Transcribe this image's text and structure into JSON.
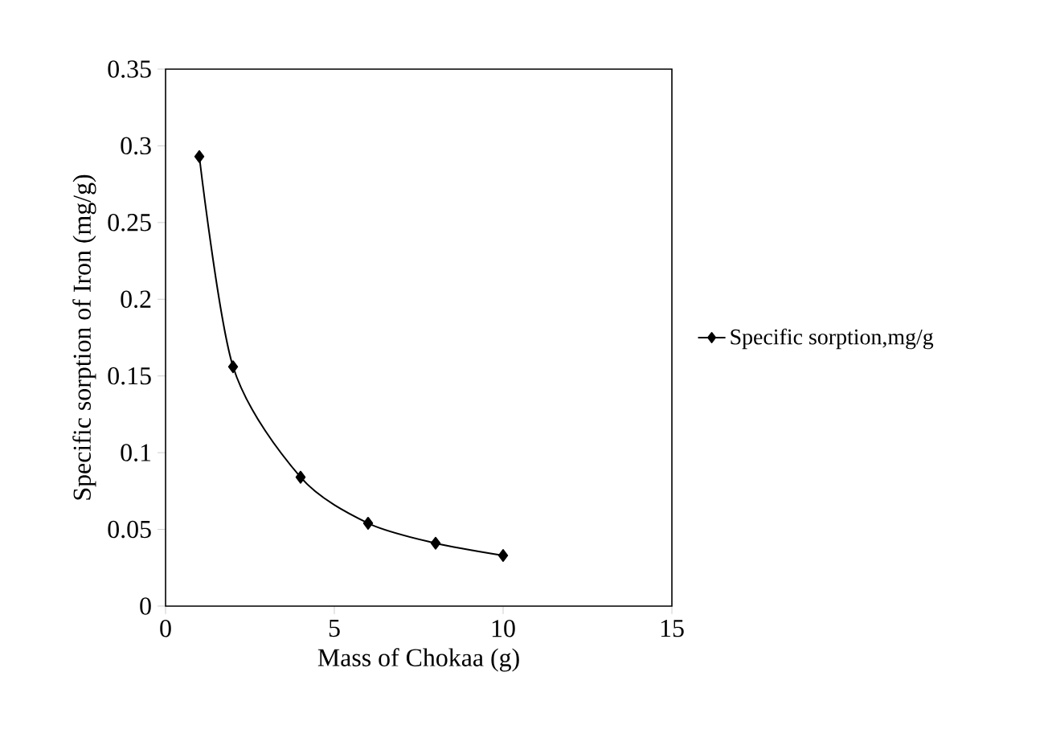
{
  "chart_data": {
    "type": "line",
    "xlabel": "Mass of Chokaa (g)",
    "ylabel": "Specific sorption of Iron (mg/g)",
    "x": [
      1,
      2,
      4,
      6,
      8,
      10
    ],
    "series": [
      {
        "name": "Specific sorption,mg/g",
        "color": "#000000",
        "values": [
          0.293,
          0.156,
          0.084,
          0.054,
          0.041,
          0.033
        ]
      }
    ],
    "xlim": [
      0,
      15
    ],
    "xticks": [
      0,
      5,
      10,
      15
    ],
    "ylim": [
      0,
      0.35
    ],
    "yticks": [
      0,
      0.05,
      0.1,
      0.15,
      0.2,
      0.25,
      0.3,
      0.35
    ],
    "marker": "diamond",
    "line_style": "solid",
    "grid": false,
    "legend": "right"
  }
}
